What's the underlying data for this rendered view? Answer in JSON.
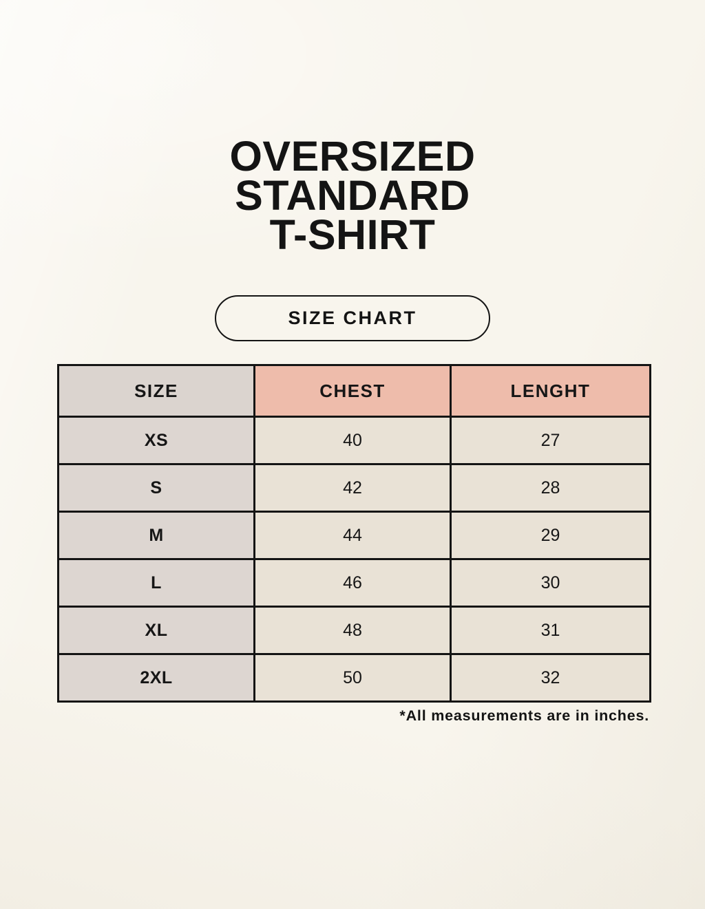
{
  "title": {
    "lines": [
      "OVERSIZED",
      "STANDARD",
      "T-SHIRT"
    ]
  },
  "size_chart_badge": {
    "label": "SIZE CHART"
  },
  "table": {
    "headers": {
      "size": "SIZE",
      "chest": "CHEST",
      "lenght": "LENGHT"
    },
    "rows": [
      {
        "size": "XS",
        "chest": "40",
        "lenght": "27"
      },
      {
        "size": "S",
        "chest": "42",
        "lenght": "28"
      },
      {
        "size": "M",
        "chest": "44",
        "lenght": "29"
      },
      {
        "size": "L",
        "chest": "46",
        "lenght": "30"
      },
      {
        "size": "XL",
        "chest": "48",
        "lenght": "31"
      },
      {
        "size": "2XL",
        "chest": "50",
        "lenght": "32"
      }
    ]
  },
  "footnote": {
    "text": "*All measurements are in inches."
  },
  "colors": {
    "page_background": "#f8f5ed",
    "header_accent_pink": "#eebcab",
    "size_column_taupe": "#ddd6d1",
    "value_cell_cream": "#e9e2d6",
    "table_border": "#141414",
    "text": "#141414"
  }
}
